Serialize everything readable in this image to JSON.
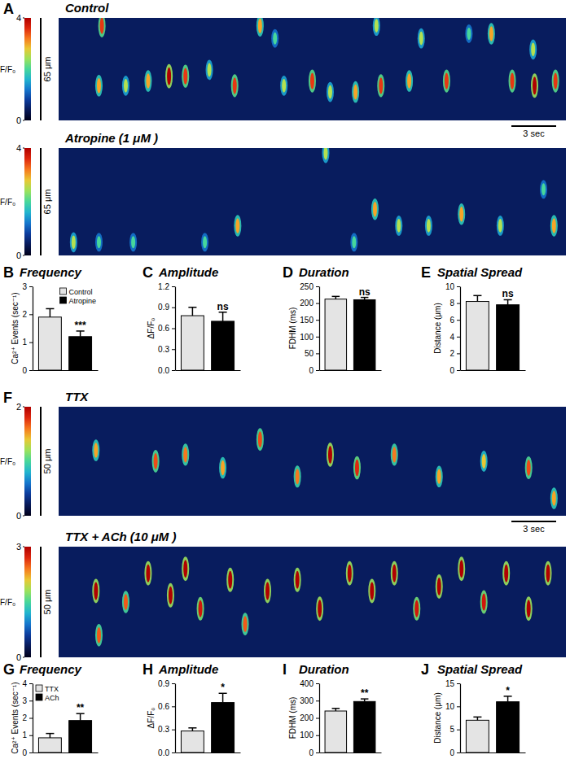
{
  "chart_data": [
    {
      "type": "linescan",
      "panel": "A",
      "title": "Control",
      "x": [
        2.9,
        2.7,
        4.5,
        6.0,
        7.4,
        8.5,
        10.1,
        11.8,
        13.5,
        14.5,
        15.1,
        17.0,
        18.2,
        19.9,
        21.3,
        21.6,
        23.5,
        24.3,
        26.0,
        27.5,
        29.0,
        30.4,
        31.8,
        31.9,
        33.3
      ],
      "y": [
        60,
        22,
        22,
        25,
        28,
        28,
        32,
        22,
        60,
        52,
        22,
        25,
        18,
        18,
        60,
        22,
        25,
        52,
        25,
        55,
        55,
        25,
        45,
        22,
        25
      ],
      "values": [
        3.5,
        3,
        2.5,
        3,
        4,
        3.5,
        2.5,
        3.5,
        3,
        2,
        2.5,
        3.5,
        2.5,
        3,
        2.5,
        3.5,
        3,
        2.5,
        3.5,
        2,
        3,
        3.5,
        2.5,
        4,
        3.5
      ],
      "xlim": [
        0,
        34
      ],
      "ylim": [
        0,
        65
      ],
      "tick_labels": false,
      "colorbar": {
        "label": "F/F₀",
        "range": [
          0,
          4
        ],
        "ticks": [
          0,
          4
        ]
      },
      "scale_bars": {
        "x": {
          "value": 3,
          "label": "3 sec"
        },
        "y": {
          "value": 65,
          "label": "65 μm"
        }
      }
    },
    {
      "type": "linescan",
      "title": "Atropine (1 μM )",
      "x": [
        1.0,
        2.7,
        5.0,
        9.8,
        12.0,
        17.9,
        19.8,
        21.2,
        22.8,
        24.8,
        27.0,
        29.6,
        32.5,
        33.2
      ],
      "y": [
        8,
        8,
        8,
        8,
        18,
        62,
        8,
        28,
        18,
        18,
        25,
        18,
        40,
        18
      ],
      "values": [
        2.5,
        2,
        2,
        2,
        3,
        2.5,
        2,
        3,
        2.5,
        2.5,
        3,
        2.5,
        2,
        3
      ],
      "xlim": [
        0,
        34
      ],
      "ylim": [
        0,
        65
      ],
      "tick_labels": false,
      "colorbar": {
        "label": "F/F₀",
        "range": [
          0,
          4
        ],
        "ticks": [
          0,
          4
        ]
      },
      "scale_bars": {
        "y": {
          "value": 65,
          "label": "65 μm"
        }
      }
    },
    {
      "type": "bar",
      "panel": "B",
      "title": "Frequency",
      "y_label": "Ca²⁺ Events (sec⁻¹)",
      "categories": [
        "Control",
        "Atropine"
      ],
      "values": [
        1.9,
        1.2
      ],
      "errors": [
        0.3,
        0.2
      ],
      "colors": [
        "#e4e4e4",
        "#000000"
      ],
      "significance": [
        null,
        "***"
      ],
      "ylim": [
        0,
        3
      ],
      "yticks": [
        0,
        1,
        2,
        3
      ],
      "tick_labels": "y",
      "legend": "top-right"
    },
    {
      "type": "bar",
      "panel": "C",
      "title": "Amplitude",
      "y_label": "ΔF/F₀",
      "categories": [
        null,
        null
      ],
      "values": [
        0.78,
        0.7
      ],
      "errors": [
        0.12,
        0.13
      ],
      "colors": [
        "#e4e4e4",
        "#000000"
      ],
      "significance": [
        null,
        "ns"
      ],
      "ylim": [
        0,
        1.2
      ],
      "yticks": [
        {
          "value": 0,
          "label": "0.0"
        },
        0.3,
        0.6,
        0.9,
        1.2
      ],
      "tick_labels": "y"
    },
    {
      "type": "bar",
      "panel": "D",
      "title": "Duration",
      "y_label": "FDHM (ms)",
      "categories": [
        null,
        null
      ],
      "values": [
        212,
        210
      ],
      "errors": [
        8,
        7
      ],
      "colors": [
        "#e4e4e4",
        "#000000"
      ],
      "significance": [
        null,
        "ns"
      ],
      "ylim": [
        0,
        250
      ],
      "yticks": [
        0,
        50,
        100,
        150,
        200,
        250
      ],
      "tick_labels": "y"
    },
    {
      "type": "bar",
      "panel": "E",
      "title": "Spatial Spread",
      "y_label": "Distance (μm)",
      "categories": [
        null,
        null
      ],
      "values": [
        8.2,
        7.8
      ],
      "errors": [
        0.7,
        0.6
      ],
      "colors": [
        "#e4e4e4",
        "#000000"
      ],
      "significance": [
        null,
        "ns"
      ],
      "ylim": [
        0,
        10
      ],
      "yticks": [
        0,
        2,
        4,
        6,
        8,
        10
      ],
      "tick_labels": "y"
    },
    {
      "type": "linescan",
      "panel": "F",
      "title": "TTX",
      "x": [
        2.5,
        6.5,
        8.5,
        11.0,
        13.5,
        16.0,
        18.2,
        20.0,
        22.5,
        25.5,
        28.5,
        31.5,
        33.2
      ],
      "y": [
        30,
        25,
        28,
        22,
        35,
        18,
        28,
        22,
        28,
        18,
        25,
        22,
        8
      ],
      "values": [
        1.5,
        1.7,
        1.6,
        1.5,
        1.7,
        1.6,
        2,
        1.8,
        1.6,
        1.5,
        1.4,
        1.7,
        1.5
      ],
      "xlim": [
        0,
        34
      ],
      "ylim": [
        0,
        50
      ],
      "tick_labels": false,
      "colorbar": {
        "label": "F/F₀",
        "range": [
          0,
          2
        ],
        "ticks": [
          0,
          2
        ]
      },
      "scale_bars": {
        "x": {
          "value": 3,
          "label": "3 sec"
        },
        "y": {
          "value": 50,
          "label": "50 μm"
        }
      }
    },
    {
      "type": "linescan",
      "title": "TTX + ACh (10 μM )",
      "x": [
        2.5,
        2.7,
        4.5,
        6.0,
        7.5,
        8.5,
        9.5,
        11.5,
        12.5,
        14.0,
        16.0,
        17.5,
        19.5,
        21.0,
        22.5,
        24.0,
        25.5,
        27.0,
        28.5,
        30.0,
        31.5,
        32.8
      ],
      "y": [
        30,
        10,
        25,
        38,
        28,
        40,
        22,
        35,
        15,
        30,
        35,
        22,
        38,
        30,
        38,
        22,
        32,
        40,
        25,
        38,
        22,
        38
      ],
      "values": [
        3,
        2.5,
        2.5,
        3,
        3,
        3,
        2.8,
        3,
        2.5,
        3,
        3,
        3,
        3,
        3,
        3,
        2.8,
        3,
        3,
        2.8,
        3,
        3,
        3
      ],
      "xlim": [
        0,
        34
      ],
      "ylim": [
        0,
        50
      ],
      "tick_labels": false,
      "colorbar": {
        "label": "F/F₀",
        "range": [
          0,
          3
        ],
        "ticks": [
          0,
          3
        ]
      },
      "scale_bars": {
        "y": {
          "value": 50,
          "label": "50 μm"
        }
      }
    },
    {
      "type": "bar",
      "panel": "G",
      "title": "Frequency",
      "y_label": "Ca²⁺ Events (sec⁻¹)",
      "categories": [
        "TTX",
        "ACh"
      ],
      "values": [
        0.85,
        1.85
      ],
      "errors": [
        0.25,
        0.4
      ],
      "colors": [
        "#e4e4e4",
        "#000000"
      ],
      "significance": [
        null,
        "**"
      ],
      "ylim": [
        0,
        4
      ],
      "yticks": [
        0,
        1,
        2,
        3,
        4
      ],
      "tick_labels": "y",
      "legend": "top-left"
    },
    {
      "type": "bar",
      "panel": "H",
      "title": "Amplitude",
      "y_label": "ΔF/F₀",
      "categories": [
        null,
        null
      ],
      "values": [
        0.28,
        0.65
      ],
      "errors": [
        0.04,
        0.12
      ],
      "colors": [
        "#e4e4e4",
        "#000000"
      ],
      "significance": [
        null,
        "*"
      ],
      "ylim": [
        0,
        0.9
      ],
      "yticks": [
        {
          "value": 0,
          "label": "0.0"
        },
        0.3,
        0.6,
        0.9
      ],
      "tick_labels": "y"
    },
    {
      "type": "bar",
      "panel": "I",
      "title": "Duration",
      "y_label": "FDHM (ms)",
      "categories": [
        null,
        null
      ],
      "values": [
        240,
        295
      ],
      "errors": [
        15,
        15
      ],
      "colors": [
        "#e4e4e4",
        "#000000"
      ],
      "significance": [
        null,
        "**"
      ],
      "ylim": [
        0,
        400
      ],
      "yticks": [
        0,
        100,
        200,
        300,
        400
      ],
      "tick_labels": "y"
    },
    {
      "type": "bar",
      "panel": "J",
      "title": "Spatial Spread",
      "y_label": "Distance (μm)",
      "categories": [
        null,
        null
      ],
      "values": [
        7.0,
        11.0
      ],
      "errors": [
        0.7,
        1.2
      ],
      "colors": [
        "#e4e4e4",
        "#000000"
      ],
      "significance": [
        null,
        "*"
      ],
      "ylim": [
        0,
        15
      ],
      "yticks": [
        0,
        5,
        10,
        15
      ],
      "tick_labels": "y"
    }
  ]
}
